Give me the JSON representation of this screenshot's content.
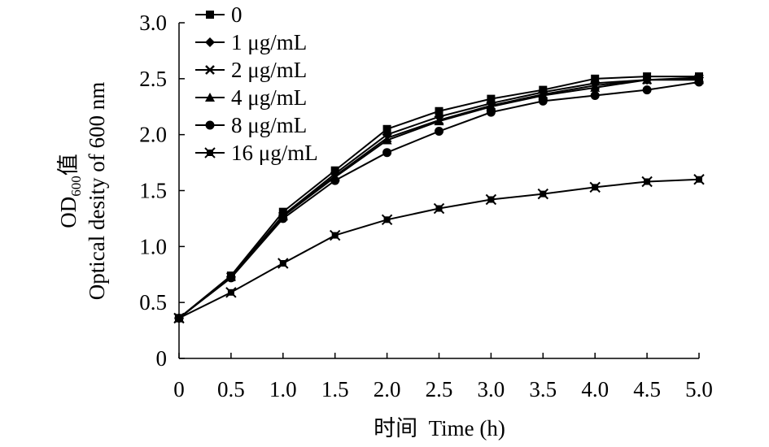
{
  "chart_data": {
    "type": "line",
    "title": "",
    "xlabel": "时间  Time (h)",
    "ylabel_line1_main": "OD",
    "ylabel_line1_sub": "600",
    "ylabel_line1_suffix": "值",
    "ylabel_line2": "Optical desity of 600 nm",
    "x": [
      0,
      0.5,
      1.0,
      1.5,
      2.0,
      2.5,
      3.0,
      3.5,
      4.0,
      4.5,
      5.0
    ],
    "x_tick_labels": [
      "0",
      "0.5",
      "1.0",
      "1.5",
      "2.0",
      "2.5",
      "3.0",
      "3.5",
      "4.0",
      "4.5",
      "5.0"
    ],
    "y_ticks": [
      0,
      0.5,
      1.0,
      1.5,
      2.0,
      2.5,
      3.0
    ],
    "y_tick_labels": [
      "0",
      "0.5",
      "1.0",
      "1.5",
      "2.0",
      "2.5",
      "3.0"
    ],
    "xlim": [
      0,
      5.0
    ],
    "ylim": [
      0,
      3.0
    ],
    "grid": false,
    "legend_position": "top-left",
    "series": [
      {
        "name": "0",
        "marker": "square",
        "values": [
          0.36,
          0.74,
          1.31,
          1.68,
          2.05,
          2.21,
          2.32,
          2.4,
          2.5,
          2.52,
          2.52
        ]
      },
      {
        "name": "1 μg/mL",
        "marker": "diamond",
        "values": [
          0.36,
          0.73,
          1.28,
          1.65,
          2.0,
          2.16,
          2.28,
          2.38,
          2.46,
          2.49,
          2.51
        ]
      },
      {
        "name": "2 μg/mL",
        "marker": "cross",
        "values": [
          0.36,
          0.73,
          1.27,
          1.63,
          1.97,
          2.13,
          2.26,
          2.36,
          2.44,
          2.49,
          2.5
        ]
      },
      {
        "name": "4 μg/mL",
        "marker": "triangle",
        "values": [
          0.36,
          0.73,
          1.27,
          1.62,
          1.95,
          2.12,
          2.25,
          2.35,
          2.42,
          2.49,
          2.49
        ]
      },
      {
        "name": "8 μg/mL",
        "marker": "circle",
        "values": [
          0.36,
          0.72,
          1.25,
          1.59,
          1.84,
          2.03,
          2.2,
          2.3,
          2.35,
          2.4,
          2.47
        ]
      },
      {
        "name": "16 μg/mL",
        "marker": "boxcross",
        "values": [
          0.36,
          0.59,
          0.85,
          1.1,
          1.24,
          1.34,
          1.42,
          1.47,
          1.53,
          1.58,
          1.6
        ]
      }
    ],
    "color": "#000000"
  }
}
